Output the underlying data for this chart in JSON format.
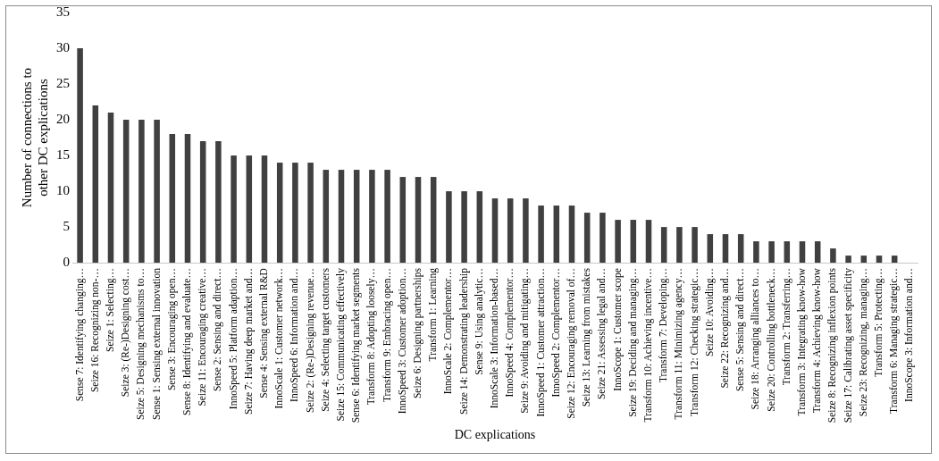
{
  "chart_data": {
    "type": "bar",
    "xlabel": "DC explications",
    "ylabel": "Number of connections to other DC explications",
    "categories": [
      "Sense 7: Identifying changing…",
      "Seize 16: Recognizing non-…",
      "Seize 1: Selecting…",
      "Seize 3: (Re-)Designing cost…",
      "Seize 5: Designing mechanisms to…",
      "Sense 1: Sensing external innovation",
      "Sense 3: Encouraging open…",
      "Sense 8: Identifying and evaluate…",
      "Seize 11: Encouraging creative…",
      "Sense 2: Sensing and direct…",
      "InnoSpeed 5: Platform adaption…",
      "Seize 7: Having deep market and…",
      "Sense 4: Sensing external R&D",
      "InnoScale 1: Customer network…",
      "InnoSpeed 6: Information and…",
      "Seize 2: (Re-)Designing revenue…",
      "Seize 4: Selecting target customers",
      "Seize 15: Communicating effectively",
      "Sense 6: Identifying market segments",
      "Transform 8: Adopting loosely…",
      "Transform 9: Embracing open…",
      "InnoSpeed 3: Customer adoption…",
      "Seize 6: Designing partnerships",
      "Transform 1: Learning",
      "InnoScale 2: Complementor…",
      "Seize 14: Demonstrating leadership",
      "Sense 9: Using analytic…",
      "InnoScale 3: Information-based…",
      "InnoSpeed 4: Complementor…",
      "Seize 9: Avoiding and mitigating…",
      "InnoSpeed 1: Customer attraction…",
      "InnoSpeed 2: Complementor…",
      "Seize 12: Encouraging removal of…",
      "Seize 13: Learning from mistakes",
      "Seize 21: Assessing legal and…",
      "InnoScope 1: Customer scope",
      "Seize 19: Deciding and managing…",
      "Transform 10: Achieving incentive…",
      "Transform 7: Developing…",
      "Transform 11: Minimizing agency…",
      "Transform 12: Checking strategic…",
      "Seize 10: Avoiding…",
      "Seize 22: Recognizing and…",
      "Sense 5: Sensing and direct…",
      "Seize 18: Arranging alliances to…",
      "Seize 20: Controlling bottleneck…",
      "Transform 2: Transferring…",
      "Transform 3: Integrating know-how",
      "Transform 4: Achieving know-how",
      "Seize 8: Recognizing inflexion points",
      "Seize 17: Calibrating asset specificity",
      "Seize 23: Recognizing, managing…",
      "Transform 5: Protecting…",
      "Transform 6: Managing strategic…",
      "InnoScope 3: Information and…"
    ],
    "values": [
      30,
      22,
      21,
      20,
      20,
      20,
      18,
      18,
      17,
      17,
      15,
      15,
      15,
      14,
      14,
      14,
      13,
      13,
      13,
      13,
      13,
      12,
      12,
      12,
      10,
      10,
      10,
      9,
      9,
      9,
      8,
      8,
      8,
      7,
      7,
      6,
      6,
      6,
      5,
      5,
      5,
      4,
      4,
      4,
      3,
      3,
      3,
      3,
      3,
      2,
      1,
      1,
      1,
      1,
      0
    ],
    "color": "#404040",
    "ylim": [
      0,
      35
    ],
    "yticks": [
      0,
      5,
      10,
      15,
      20,
      25,
      30,
      35
    ],
    "grid": false,
    "legend": false
  }
}
